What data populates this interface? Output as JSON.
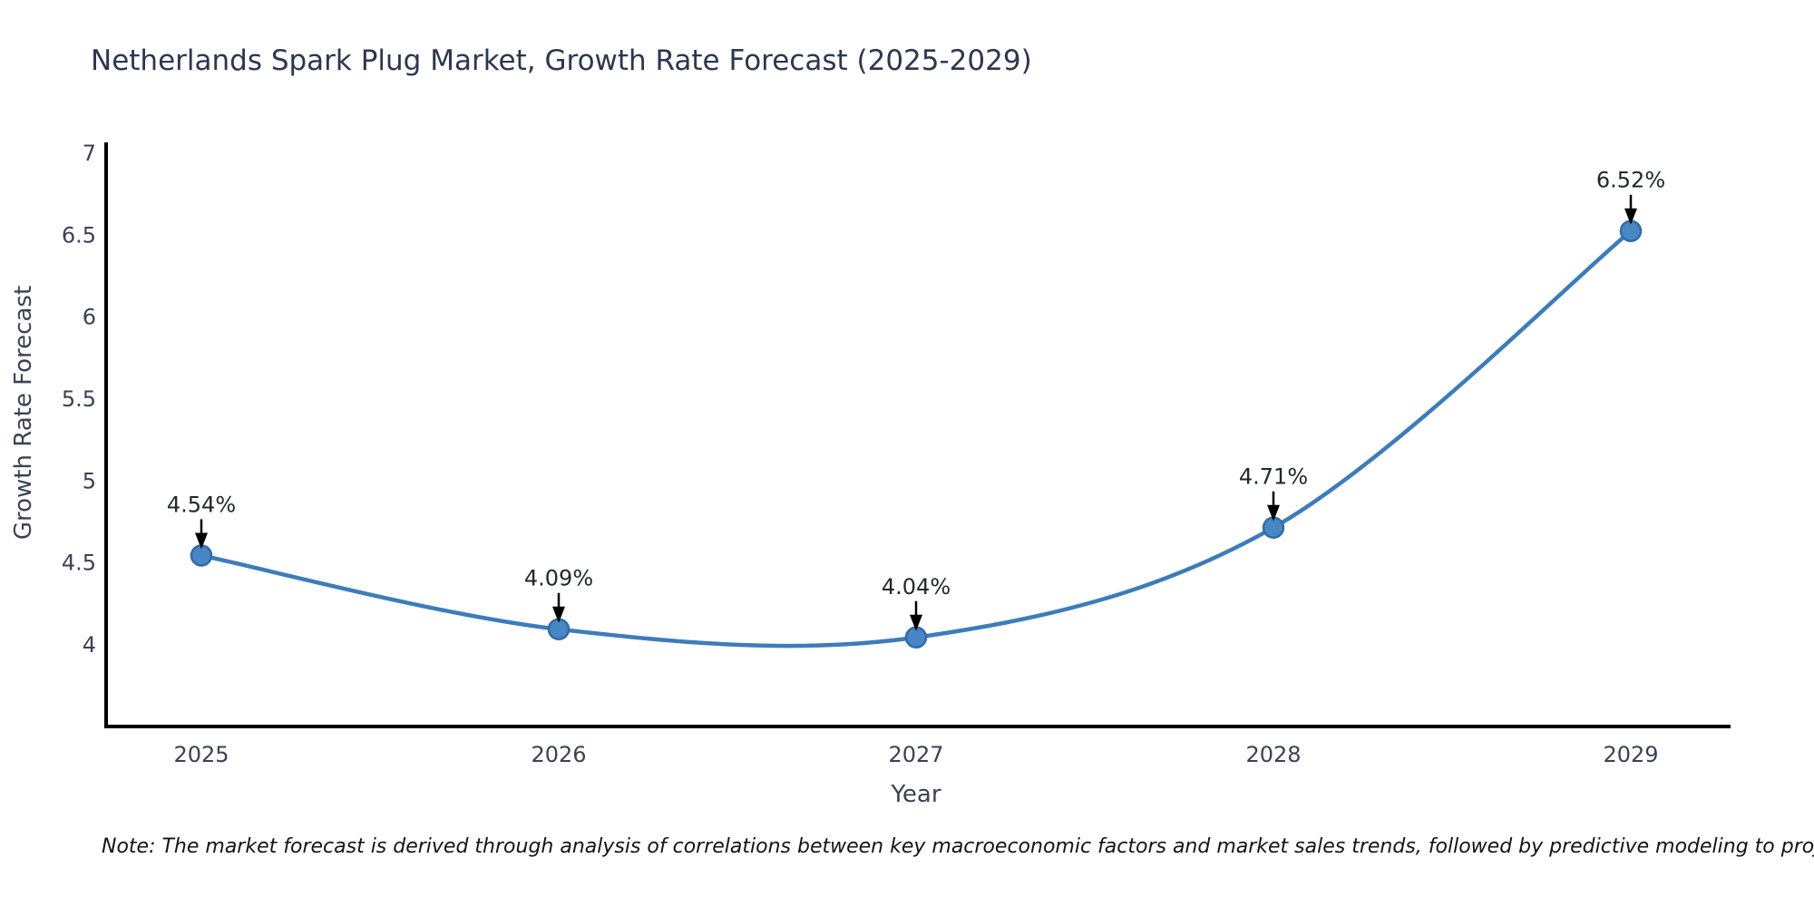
{
  "note": "Note: The market forecast is derived through analysis of correlations between key macroeconomic factors and market sales trends, followed by predictive modeling to project future sales",
  "chart_data": {
    "type": "line",
    "title": "Netherlands Spark Plug Market, Growth Rate Forecast (2025-2029)",
    "xlabel": "Year",
    "ylabel": "Growth Rate Forecast",
    "x": [
      2025,
      2026,
      2027,
      2028,
      2029
    ],
    "series": [
      {
        "name": "Growth Rate Forecast",
        "values": [
          4.54,
          4.09,
          4.04,
          4.71,
          6.52
        ],
        "point_labels": [
          "4.54%",
          "4.09%",
          "4.04%",
          "4.71%",
          "6.52%"
        ]
      }
    ],
    "yticks": [
      4,
      4.5,
      5,
      5.5,
      6,
      6.5,
      7
    ],
    "xticks": [
      2025,
      2026,
      2027,
      2028,
      2029
    ],
    "ylim": [
      3.5,
      7.05
    ],
    "grid": false,
    "legend": false,
    "smooth": true,
    "annotations_have_arrows": true
  },
  "colors": {
    "background": "#ffffff",
    "title_text": "#2c3750",
    "axis_text": "#3a4255",
    "axis_line": "#000000",
    "line": "#3d7cba",
    "marker_fill": "#4886c5",
    "marker_edge": "#2f6ca9",
    "annotation_text": "#23272e",
    "annotation_arrow": "#000000",
    "note_text": "#141414"
  }
}
